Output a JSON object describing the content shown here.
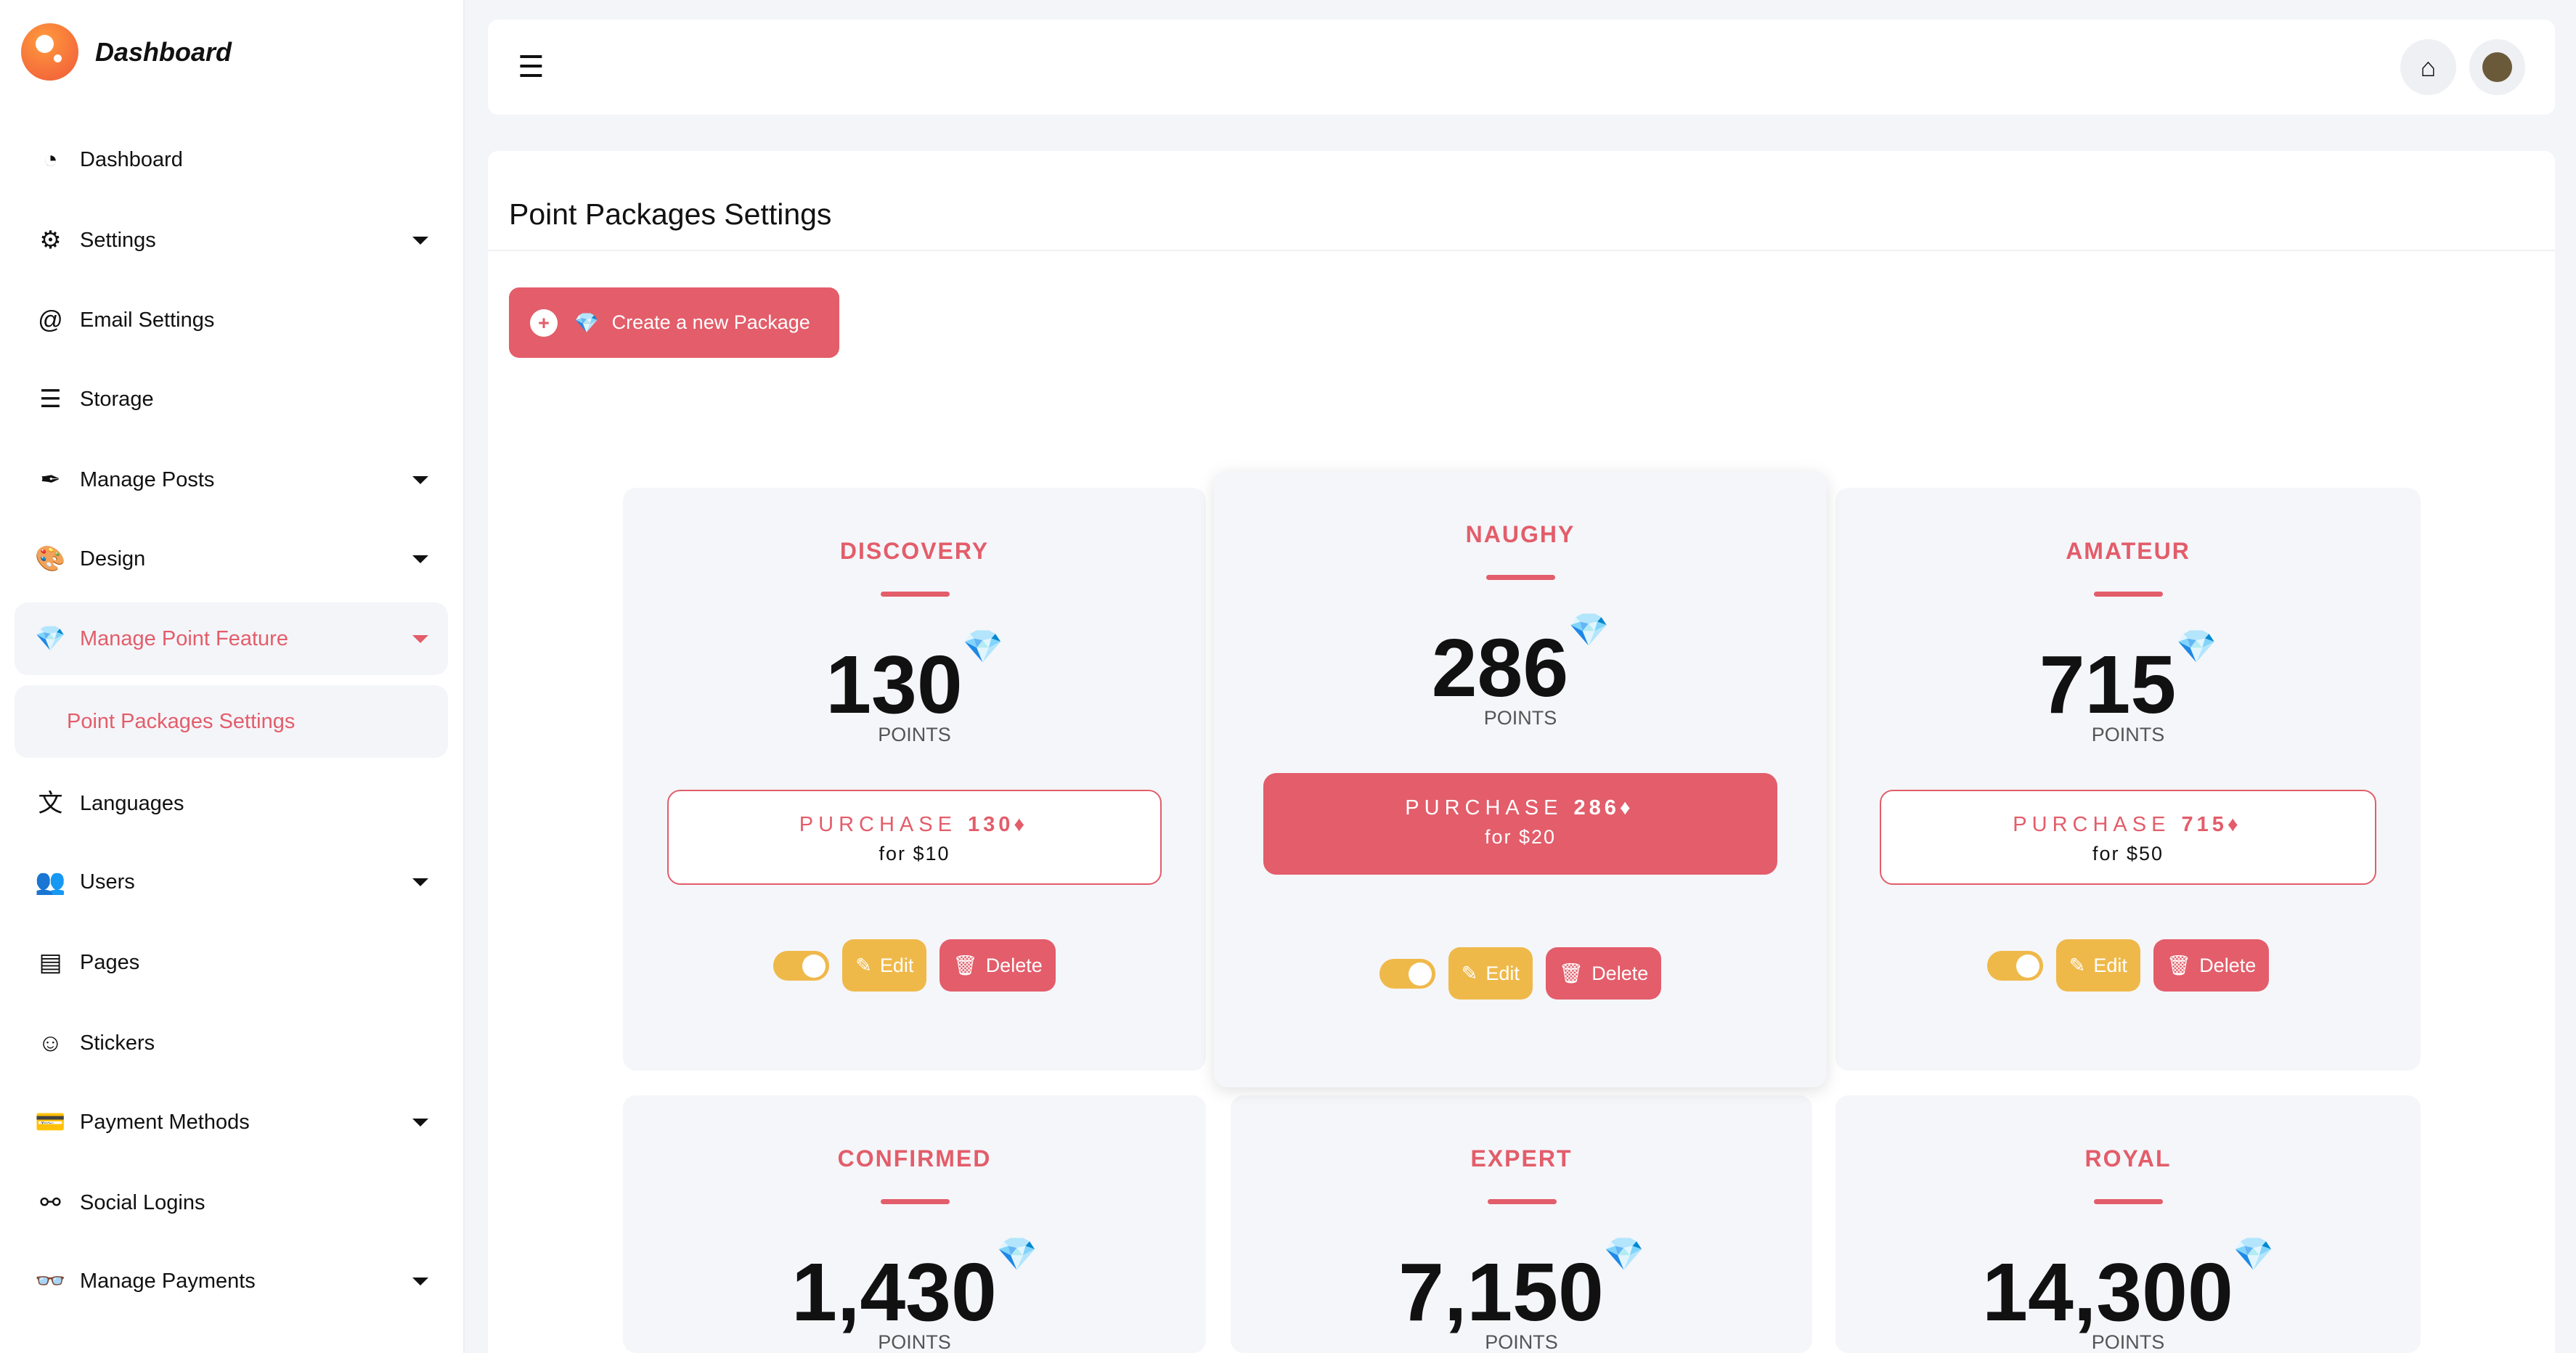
{
  "brand": {
    "title": "Dashboard"
  },
  "sidebar": {
    "items": [
      {
        "label": "Dashboard",
        "icon": "gauge-icon",
        "glyph": "◔",
        "caret": false
      },
      {
        "label": "Settings",
        "icon": "gear-icon",
        "glyph": "⚙",
        "caret": true
      },
      {
        "label": "Email Settings",
        "icon": "at-icon",
        "glyph": "@",
        "caret": false
      },
      {
        "label": "Storage",
        "icon": "database-icon",
        "glyph": "☰",
        "caret": false
      },
      {
        "label": "Manage Posts",
        "icon": "feather-icon",
        "glyph": "✒",
        "caret": true
      },
      {
        "label": "Design",
        "icon": "palette-icon",
        "glyph": "🎨",
        "caret": true
      },
      {
        "label": "Manage Point Feature",
        "icon": "gem-icon",
        "glyph": "💎",
        "caret": true,
        "active": true
      },
      {
        "label": "Languages",
        "icon": "language-icon",
        "glyph": "文",
        "caret": false
      },
      {
        "label": "Users",
        "icon": "users-icon",
        "glyph": "👥",
        "caret": true
      },
      {
        "label": "Pages",
        "icon": "page-icon",
        "glyph": "▤",
        "caret": false
      },
      {
        "label": "Stickers",
        "icon": "sticker-icon",
        "glyph": "☺",
        "caret": false
      },
      {
        "label": "Payment Methods",
        "icon": "payment-icon",
        "glyph": "💳",
        "caret": true
      },
      {
        "label": "Social Logins",
        "icon": "share-icon",
        "glyph": "⚯",
        "caret": false
      },
      {
        "label": "Manage Payments",
        "icon": "money-icon",
        "glyph": "👓",
        "caret": true
      }
    ],
    "sub_item": "Point Packages Settings"
  },
  "main": {
    "title": "Point Packages Settings",
    "create_label": "Create a new Package"
  },
  "packages": [
    {
      "name": "DISCOVERY",
      "points": "130",
      "points_label": "POINTS",
      "purchase": "PURCHASE",
      "price": "for $10",
      "active": true
    },
    {
      "name": "NAUGHY",
      "points": "286",
      "points_label": "POINTS",
      "purchase": "PURCHASE",
      "price": "for $20",
      "active": true,
      "featured": true
    },
    {
      "name": "AMATEUR",
      "points": "715",
      "points_label": "POINTS",
      "purchase": "PURCHASE",
      "price": "for $50",
      "active": true
    },
    {
      "name": "CONFIRMED",
      "points": "1,430",
      "points_label": "POINTS"
    },
    {
      "name": "EXPERT",
      "points": "7,150",
      "points_label": "POINTS"
    },
    {
      "name": "ROYAL",
      "points": "14,300",
      "points_label": "POINTS"
    }
  ],
  "actions": {
    "edit": "Edit",
    "delete": "Delete"
  },
  "colors": {
    "accent": "#e35d6a",
    "warning": "#efb94a",
    "background": "#f4f5f9"
  }
}
